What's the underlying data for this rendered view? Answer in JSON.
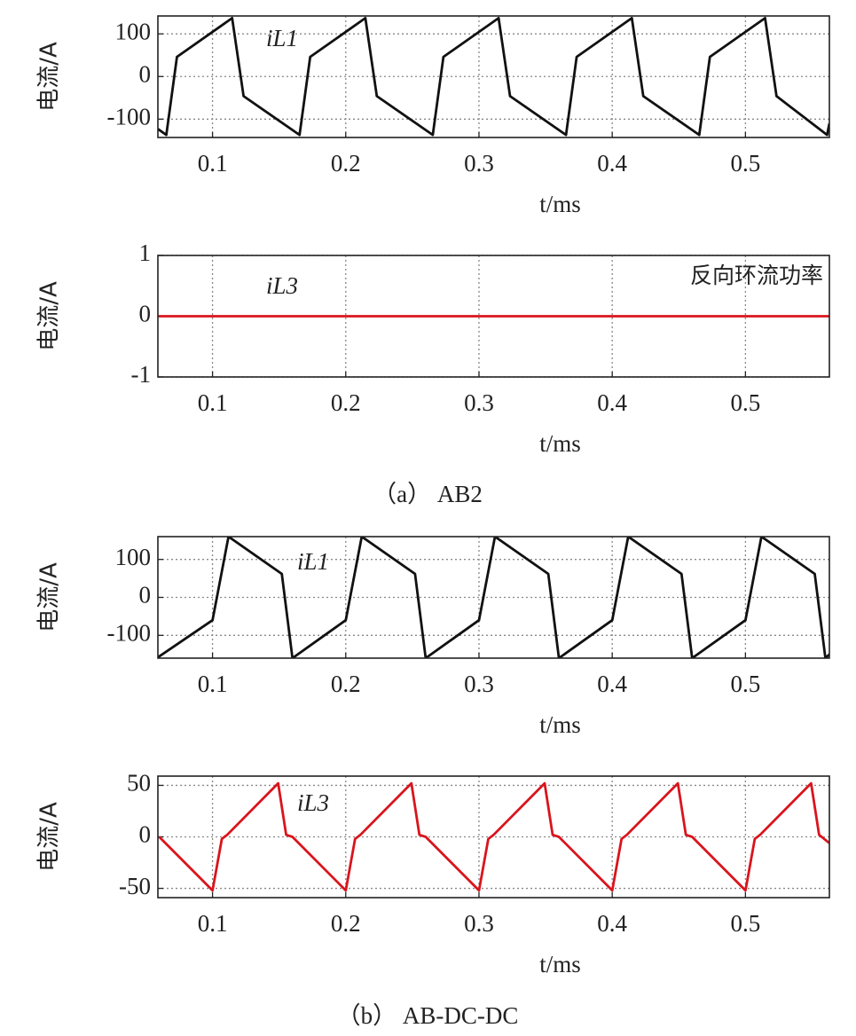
{
  "chart_data": [
    {
      "type": "line",
      "ylabel": "电流/A",
      "xlabel": "t/ms",
      "color": "#111111",
      "grid": true,
      "xlim": [
        0.059,
        0.563
      ],
      "xticks": [
        0.1,
        0.2,
        0.3,
        0.4,
        0.5
      ],
      "ylim": [
        -143,
        142
      ],
      "yticks": [
        -100,
        0,
        100
      ],
      "annotations": [
        "iL1"
      ],
      "x": [
        0.059,
        0.0653,
        0.0733,
        0.1147,
        0.1233,
        0.1653,
        0.1733,
        0.2147,
        0.2233,
        0.2653,
        0.2733,
        0.3147,
        0.3233,
        0.3653,
        0.3733,
        0.4147,
        0.4233,
        0.4653,
        0.4733,
        0.5147,
        0.5233,
        0.5613,
        0.563
      ],
      "values": [
        -123,
        -137,
        46,
        137,
        -46,
        -137,
        46,
        137,
        -46,
        -137,
        46,
        137,
        -46,
        -137,
        46,
        137,
        -46,
        -137,
        46,
        137,
        -46,
        -137,
        -110
      ]
    },
    {
      "type": "line",
      "ylabel": "电流/A",
      "xlabel": "t/ms",
      "color": "#d9141c",
      "grid": true,
      "xlim": [
        0.059,
        0.563
      ],
      "xticks": [
        0.1,
        0.2,
        0.3,
        0.4,
        0.5
      ],
      "ylim": [
        -1,
        1
      ],
      "yticks": [
        -1,
        0,
        1
      ],
      "annotations": [
        "iL3",
        "反向环流功率"
      ],
      "x": [
        0.059,
        0.563
      ],
      "values": [
        0,
        0
      ]
    },
    {
      "type": "line",
      "ylabel": "电流/A",
      "xlabel": "t/ms",
      "color": "#111111",
      "grid": true,
      "xlim": [
        0.059,
        0.563
      ],
      "xticks": [
        0.1,
        0.2,
        0.3,
        0.4,
        0.5
      ],
      "ylim": [
        -160,
        160
      ],
      "yticks": [
        -100,
        0,
        100
      ],
      "annotations": [
        "iL1"
      ],
      "x": [
        0.059,
        0.1,
        0.112,
        0.152,
        0.16,
        0.2,
        0.212,
        0.252,
        0.26,
        0.3,
        0.312,
        0.352,
        0.36,
        0.4,
        0.412,
        0.452,
        0.46,
        0.5,
        0.512,
        0.552,
        0.56,
        0.563
      ],
      "values": [
        -158,
        -60,
        160,
        62,
        -160,
        -60,
        160,
        62,
        -160,
        -60,
        160,
        62,
        -160,
        -60,
        160,
        62,
        -160,
        -60,
        160,
        62,
        -160,
        -150
      ]
    },
    {
      "type": "line",
      "ylabel": "电流/A",
      "xlabel": "t/ms",
      "color": "#d9141c",
      "grid": true,
      "xlim": [
        0.059,
        0.563
      ],
      "xticks": [
        0.1,
        0.2,
        0.3,
        0.4,
        0.5
      ],
      "ylim": [
        -59,
        59
      ],
      "yticks": [
        -50,
        0,
        50
      ],
      "annotations": [
        "iL3"
      ],
      "x": [
        0.06,
        0.1,
        0.107,
        0.111,
        0.1493,
        0.1553,
        0.16,
        0.2,
        0.207,
        0.211,
        0.2493,
        0.2553,
        0.26,
        0.3,
        0.307,
        0.311,
        0.3493,
        0.3553,
        0.36,
        0.4,
        0.407,
        0.411,
        0.4493,
        0.4553,
        0.46,
        0.5,
        0.507,
        0.511,
        0.5493,
        0.5553,
        0.563
      ],
      "values": [
        0,
        -52,
        -2,
        2,
        52,
        2,
        0,
        -52,
        -2,
        2,
        52,
        2,
        0,
        -52,
        -2,
        2,
        52,
        2,
        0,
        -52,
        -2,
        2,
        52,
        2,
        0,
        -52,
        -2,
        2,
        52,
        2,
        -6
      ]
    }
  ],
  "captions": [
    "（a） AB2",
    "（b） AB-DC-DC"
  ]
}
